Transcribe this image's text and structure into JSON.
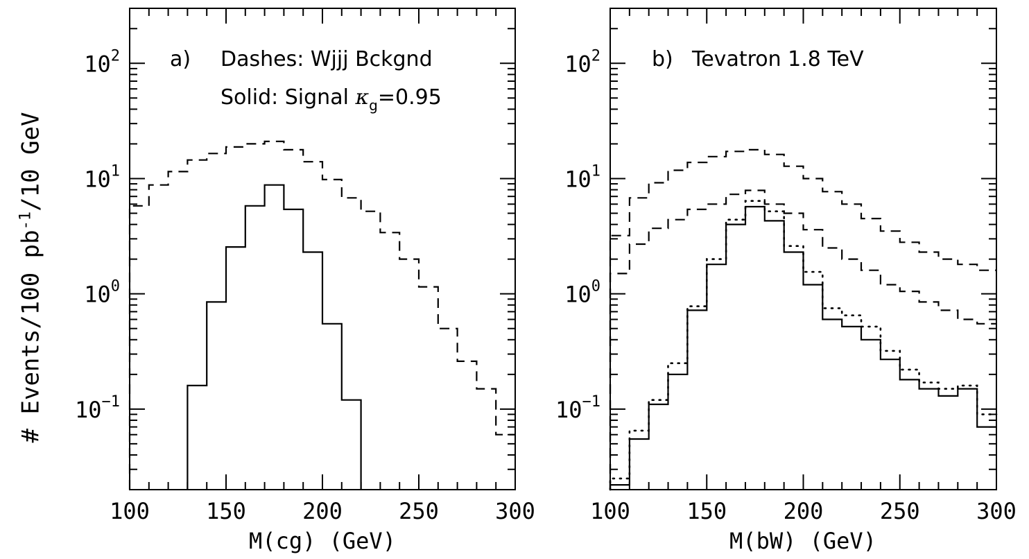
{
  "y_axis_label": {
    "prefix": "# Events/100 pb",
    "exponent": "-1",
    "suffix": "/10 GeV"
  },
  "chart_data": [
    {
      "type": "histogram",
      "panel_label": "a)",
      "annotations": {
        "line1": "Dashes: Wjjj Bckgnd",
        "line2_prefix": "Solid: Signal ",
        "line2_kappa": "κ",
        "line2_sub": "g",
        "line2_suffix": "=0.95"
      },
      "xlabel": "M(cg) (GeV)",
      "x_ticks": [
        "100",
        "150",
        "200",
        "250",
        "300"
      ],
      "y_ticks": [
        {
          "base": "10",
          "exp": "2"
        },
        {
          "base": "10",
          "exp": "1"
        },
        {
          "base": "10",
          "exp": "0"
        },
        {
          "base": "10",
          "exp": "−1"
        }
      ],
      "y_scale": "log",
      "xlim": [
        100,
        300
      ],
      "ylim": [
        0.02,
        300
      ],
      "bin_edges": [
        100,
        110,
        120,
        130,
        140,
        150,
        160,
        170,
        180,
        190,
        200,
        210,
        220,
        230,
        240,
        250,
        260,
        270,
        280,
        290,
        300
      ],
      "series": [
        {
          "style": "dashed",
          "values": [
            5.8,
            8.8,
            11.5,
            14.5,
            16.5,
            18.8,
            20.0,
            21.0,
            17.8,
            14.0,
            9.8,
            6.8,
            5.2,
            3.4,
            2.0,
            1.15,
            0.5,
            0.26,
            0.15,
            0.06
          ]
        },
        {
          "style": "solid",
          "values": [
            null,
            null,
            null,
            0.16,
            0.85,
            2.55,
            5.8,
            8.8,
            5.4,
            2.3,
            0.55,
            0.12,
            null,
            null,
            null,
            null,
            null,
            null,
            null,
            null
          ]
        }
      ]
    },
    {
      "type": "histogram",
      "panel_label": "b)",
      "annotations": {
        "line1": "Tevatron 1.8 TeV"
      },
      "xlabel": "M(bW) (GeV)",
      "x_ticks": [
        "100",
        "150",
        "200",
        "250",
        "300"
      ],
      "y_ticks": [
        {
          "base": "10",
          "exp": "2"
        },
        {
          "base": "10",
          "exp": "1"
        },
        {
          "base": "10",
          "exp": "0"
        },
        {
          "base": "10",
          "exp": "−1"
        }
      ],
      "y_scale": "log",
      "xlim": [
        100,
        300
      ],
      "ylim": [
        0.02,
        300
      ],
      "bin_edges": [
        100,
        110,
        120,
        130,
        140,
        150,
        160,
        170,
        180,
        190,
        200,
        210,
        220,
        230,
        240,
        250,
        260,
        270,
        280,
        290,
        300
      ],
      "series": [
        {
          "style": "dashed",
          "values": [
            3.2,
            6.8,
            9.2,
            11.8,
            13.8,
            15.5,
            17.2,
            17.8,
            16.2,
            12.8,
            10.0,
            7.7,
            6.0,
            4.5,
            3.5,
            2.8,
            2.3,
            2.0,
            1.8,
            1.6
          ]
        },
        {
          "style": "dashed",
          "values": [
            1.5,
            2.7,
            3.7,
            4.4,
            5.4,
            6.0,
            7.3,
            7.9,
            6.0,
            5.0,
            3.6,
            2.5,
            2.0,
            1.6,
            1.2,
            1.05,
            0.85,
            0.72,
            0.6,
            0.55
          ]
        },
        {
          "style": "dotted",
          "values": [
            0.025,
            0.065,
            0.12,
            0.25,
            0.78,
            2.0,
            4.4,
            6.4,
            5.2,
            2.6,
            1.55,
            0.75,
            0.65,
            0.52,
            0.32,
            0.22,
            0.17,
            0.15,
            0.16,
            0.09
          ]
        },
        {
          "style": "solid",
          "values": [
            0.022,
            0.055,
            0.11,
            0.2,
            0.72,
            1.8,
            4.0,
            5.7,
            4.3,
            2.3,
            1.2,
            0.6,
            0.52,
            0.4,
            0.27,
            0.18,
            0.15,
            0.13,
            0.15,
            0.07
          ]
        }
      ]
    }
  ]
}
